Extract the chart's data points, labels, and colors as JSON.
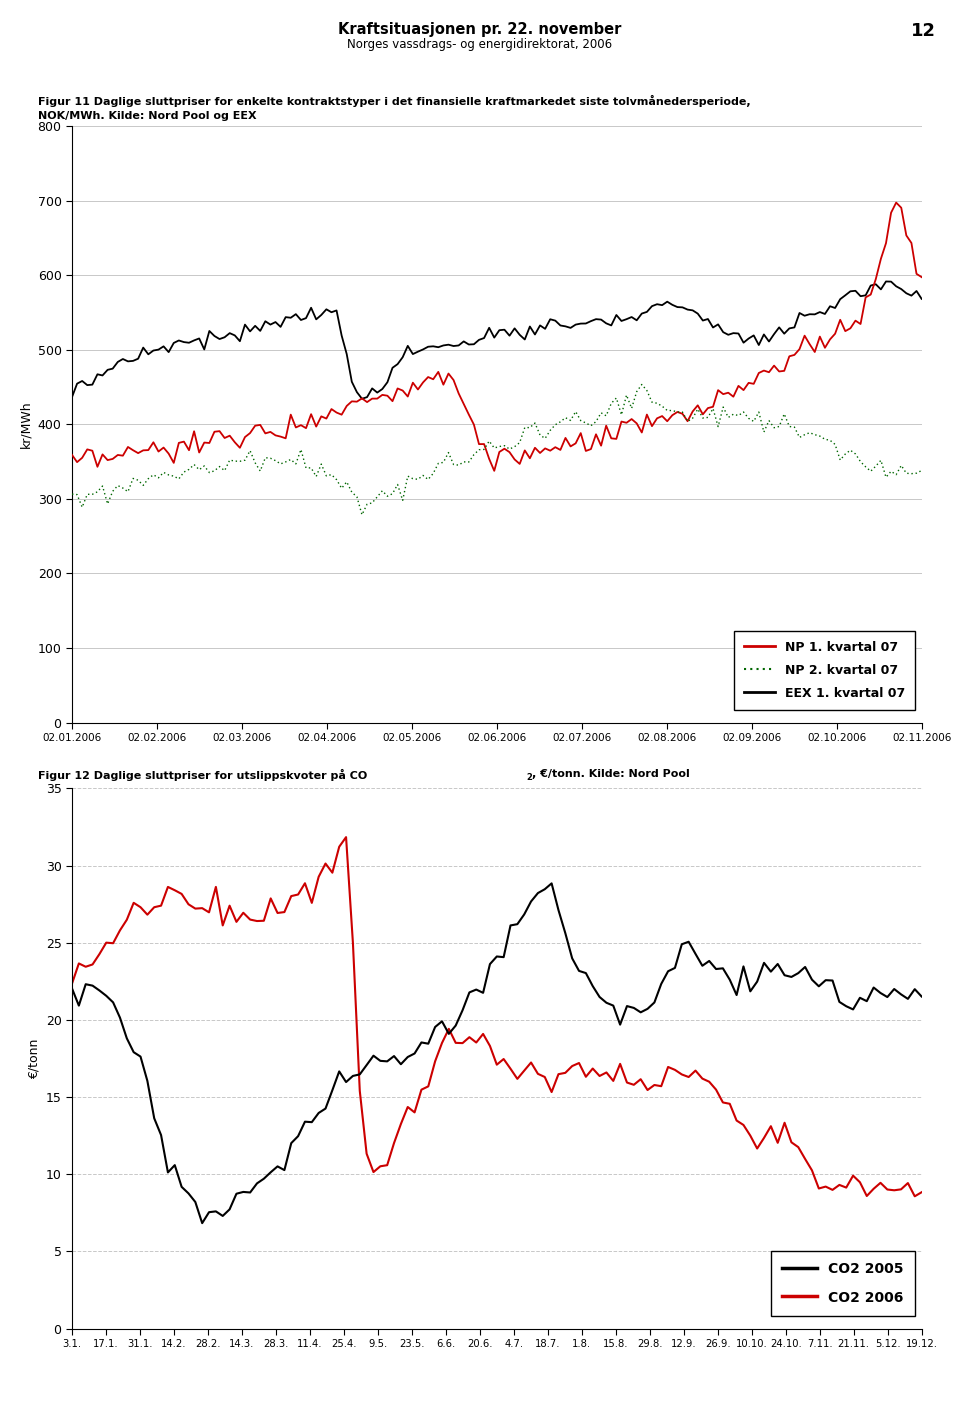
{
  "page_title": "Kraftsituasjonen pr. 22. november",
  "page_subtitle": "Norges vassdrags- og energidirektorat, 2006",
  "page_number": "12",
  "fig1_caption_line1": "Figur 11 Daglige sluttpriser for enkelte kontraktstyper i det finansielle kraftmarkedet siste tolvmånedersperiode,",
  "fig1_caption_line2": "NOK/MWh. Kilde: Nord Pool og EEX",
  "fig1_ylabel": "kr/MWh",
  "fig1_ylim": [
    0,
    800
  ],
  "fig1_yticks": [
    0,
    100,
    200,
    300,
    400,
    500,
    600,
    700,
    800
  ],
  "fig1_xticks": [
    "02.01.2006",
    "02.02.2006",
    "02.03.2006",
    "02.04.2006",
    "02.05.2006",
    "02.06.2006",
    "02.07.2006",
    "02.08.2006",
    "02.09.2006",
    "02.10.2006",
    "02.11.2006"
  ],
  "fig2_caption_pre": "Figur 12 Daglige sluttpriser for utslippskvoter på CO",
  "fig2_caption_sub": "2",
  "fig2_caption_post": ", €/tonn. Kilde: Nord Pool",
  "fig2_ylabel": "€/tonn",
  "fig2_ylim": [
    0,
    35
  ],
  "fig2_yticks": [
    0,
    5,
    10,
    15,
    20,
    25,
    30,
    35
  ],
  "fig2_xticks": [
    "3.1.",
    "17.1.",
    "31.1.",
    "14.2.",
    "28.2.",
    "14.3.",
    "28.3.",
    "11.4.",
    "25.4.",
    "9.5.",
    "23.5.",
    "6.6.",
    "20.6.",
    "4.7.",
    "18.7.",
    "1.8.",
    "15.8.",
    "29.8.",
    "12.9.",
    "26.9.",
    "10.10.",
    "24.10.",
    "7.11.",
    "21.11.",
    "5.12.",
    "19.12."
  ],
  "color_np1": "#cc0000",
  "color_np2": "#006600",
  "color_eex": "#000000",
  "color_co2_2005": "#000000",
  "color_co2_2006": "#cc0000",
  "legend1_entries": [
    "NP 1. kvartal 07",
    "NP 2. kvartal 07",
    "EEX 1. kvartal 07"
  ],
  "legend2_entries": [
    "CO2 2005",
    "CO2 2006"
  ],
  "grid_color": "#c8c8c8",
  "background_color": "#ffffff"
}
